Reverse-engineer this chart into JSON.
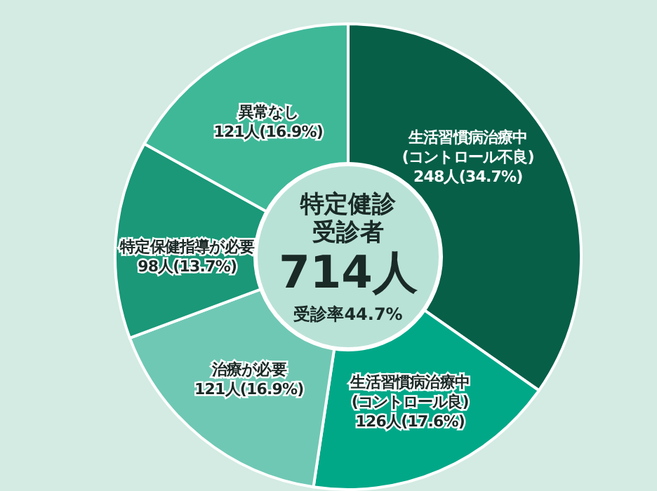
{
  "chart_data": {
    "type": "donut",
    "title": "特定健診受診者",
    "categories": [
      "生活習慣病治療中(コントロール不良)",
      "生活習慣病治療中(コントロール良)",
      "治療が必要",
      "特定保健指導が必要",
      "異常なし"
    ],
    "values": [
      248,
      126,
      121,
      98,
      121
    ],
    "value_labels": [
      "248人(34.7%)",
      "126人(17.6%)",
      "121人(16.9%)",
      "98人(13.7%)",
      "121人(16.9%)"
    ],
    "colors": [
      "#075f48",
      "#00a888",
      "#6fc8b4",
      "#1a9878",
      "#3fb898"
    ],
    "annotations": [
      "714人",
      "受診率44.7%"
    ],
    "legend": false
  }
}
